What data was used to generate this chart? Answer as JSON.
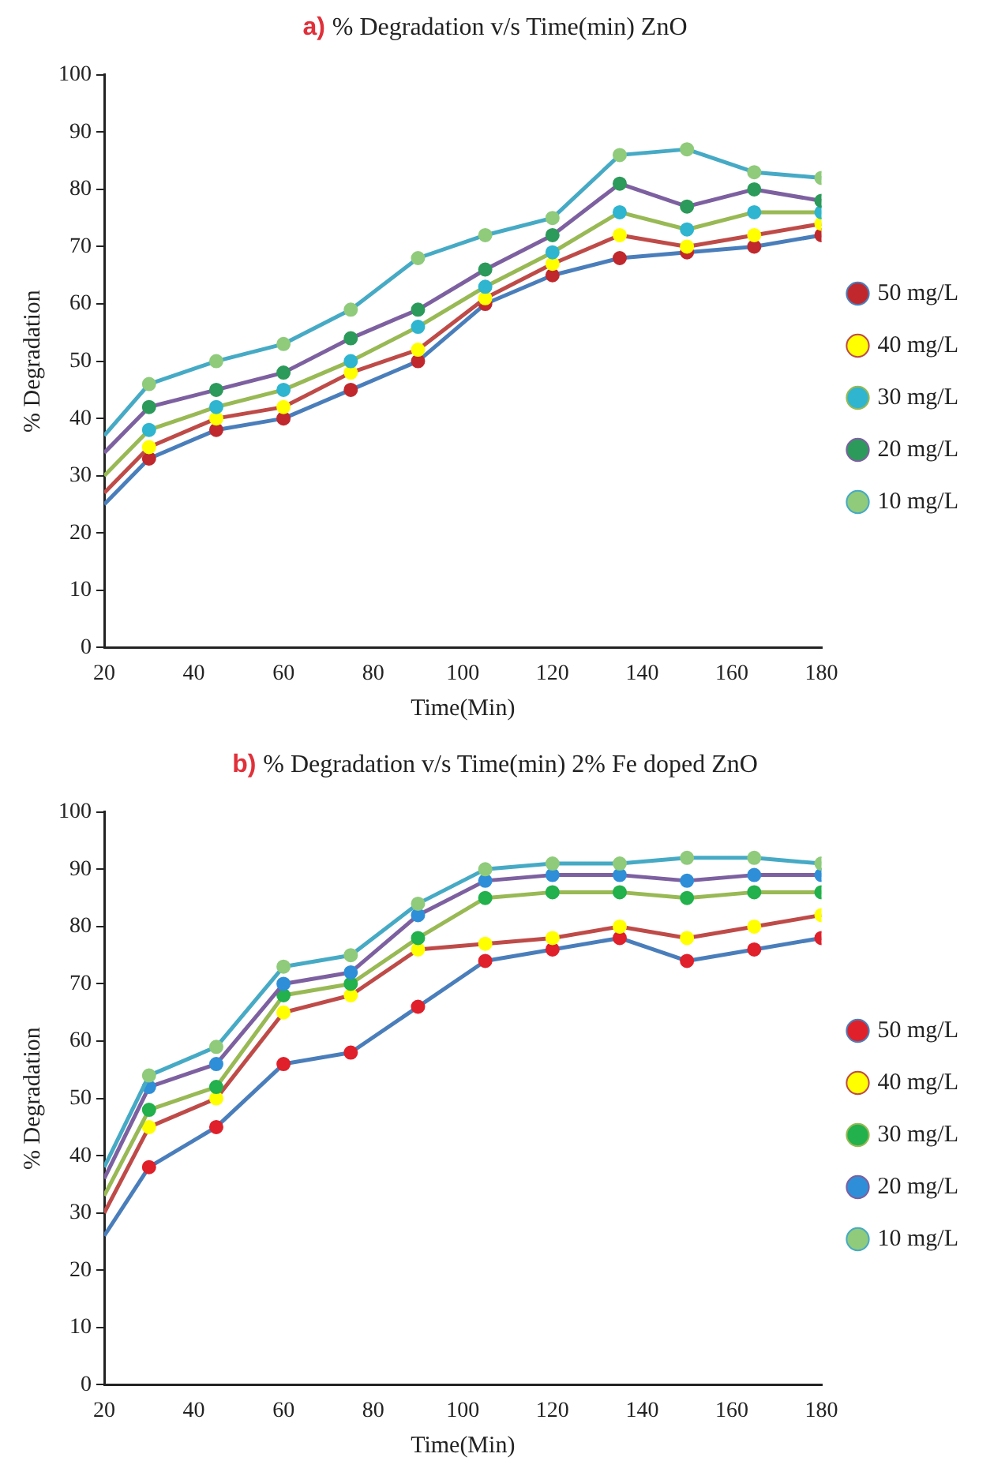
{
  "chart_data": [
    {
      "type": "line",
      "title": "a) % Degradation v/s Time(min) ZnO",
      "xlabel": "Time(Min)",
      "ylabel": "% Degradation",
      "x": [
        20,
        30,
        45,
        60,
        75,
        90,
        105,
        120,
        135,
        150,
        165,
        180
      ],
      "xlim": [
        20,
        180
      ],
      "xticks": [
        20,
        40,
        60,
        80,
        100,
        120,
        140,
        160,
        180
      ],
      "ylim": [
        0,
        100
      ],
      "yticks": [
        0,
        10,
        20,
        30,
        40,
        50,
        60,
        70,
        80,
        90,
        100
      ],
      "grid": false,
      "legend": "right",
      "marker": "circle",
      "line_style": "solid",
      "series": [
        {
          "name": "50 mg/L",
          "color": "#4a7ebb",
          "colors": [
            null,
            "#c0282d",
            "#c0282d",
            "#c0282d",
            "#c0282d",
            "#c0282d",
            "#c0282d",
            "#c0282d",
            "#c0282d",
            "#c0282d",
            "#c0282d",
            "#c0282d"
          ],
          "values": [
            25,
            33,
            38,
            40,
            45,
            50,
            60,
            65,
            68,
            69,
            70,
            72
          ]
        },
        {
          "name": "40 mg/L",
          "color": "#be4b48",
          "colors": [
            null,
            "#ffff00",
            "#ffff00",
            "#ffff00",
            "#ffff00",
            "#ffff00",
            "#ffff00",
            "#ffff00",
            "#ffff00",
            "#ffff00",
            "#ffff00",
            "#ffff00"
          ],
          "values": [
            27,
            35,
            40,
            42,
            48,
            52,
            61,
            67,
            72,
            70,
            72,
            74
          ]
        },
        {
          "name": "30 mg/L",
          "color": "#98b954",
          "colors": [
            null,
            "#2fb5cf",
            "#2fb5cf",
            "#2fb5cf",
            "#2fb5cf",
            "#2fb5cf",
            "#2fb5cf",
            "#2fb5cf",
            "#2fb5cf",
            "#2fb5cf",
            "#2fb5cf",
            "#2fb5cf"
          ],
          "values": [
            30,
            38,
            42,
            45,
            50,
            56,
            63,
            69,
            76,
            73,
            76,
            76
          ]
        },
        {
          "name": "20 mg/L",
          "color": "#7d60a0",
          "colors": [
            null,
            "#2c9a5a",
            "#2c9a5a",
            "#2c9a5a",
            "#2c9a5a",
            "#2c9a5a",
            "#2c9a5a",
            "#2c9a5a",
            "#2c9a5a",
            "#2c9a5a",
            "#2c9a5a",
            "#2c9a5a"
          ],
          "values": [
            34,
            42,
            45,
            48,
            54,
            59,
            66,
            72,
            81,
            77,
            80,
            78
          ]
        },
        {
          "name": "10 mg/L",
          "color": "#46aac5",
          "colors": [
            null,
            "#8fcb7a",
            "#8fcb7a",
            "#8fcb7a",
            "#8fcb7a",
            "#8fcb7a",
            "#8fcb7a",
            "#8fcb7a",
            "#8fcb7a",
            "#8fcb7a",
            "#8fcb7a",
            "#8fcb7a"
          ],
          "values": [
            37,
            46,
            50,
            53,
            59,
            68,
            72,
            75,
            86,
            87,
            83,
            82
          ]
        }
      ]
    },
    {
      "type": "line",
      "title": "b) % Degradation v/s Time(min) 2% Fe doped ZnO",
      "xlabel": "Time(Min)",
      "ylabel": "% Degradation",
      "x": [
        20,
        30,
        45,
        60,
        75,
        90,
        105,
        120,
        135,
        150,
        165,
        180
      ],
      "xlim": [
        20,
        180
      ],
      "xticks": [
        20,
        40,
        60,
        80,
        100,
        120,
        140,
        160,
        180
      ],
      "ylim": [
        0,
        100
      ],
      "yticks": [
        0,
        10,
        20,
        30,
        40,
        50,
        60,
        70,
        80,
        90,
        100
      ],
      "grid": false,
      "legend": "right",
      "marker": "circle",
      "line_style": "solid",
      "series": [
        {
          "name": "50 mg/L",
          "color": "#4a7ebb",
          "colors": [
            null,
            "#e0202a",
            "#e0202a",
            "#e0202a",
            "#e0202a",
            "#e0202a",
            "#e0202a",
            "#e0202a",
            "#e0202a",
            "#e0202a",
            "#e0202a",
            "#e0202a"
          ],
          "values": [
            26,
            38,
            45,
            56,
            58,
            66,
            74,
            76,
            78,
            74,
            76,
            78
          ]
        },
        {
          "name": "40 mg/L",
          "color": "#be4b48",
          "colors": [
            null,
            "#ffff00",
            "#ffff00",
            "#ffff00",
            "#ffff00",
            "#ffff00",
            "#ffff00",
            "#ffff00",
            "#ffff00",
            "#ffff00",
            "#ffff00",
            "#ffff00"
          ],
          "values": [
            30,
            45,
            50,
            65,
            68,
            76,
            77,
            78,
            80,
            78,
            80,
            82
          ]
        },
        {
          "name": "30 mg/L",
          "color": "#98b954",
          "colors": [
            null,
            "#22b14c",
            "#22b14c",
            "#22b14c",
            "#22b14c",
            "#22b14c",
            "#22b14c",
            "#22b14c",
            "#22b14c",
            "#22b14c",
            "#22b14c",
            "#22b14c"
          ],
          "values": [
            33,
            48,
            52,
            68,
            70,
            78,
            85,
            86,
            86,
            85,
            86,
            86
          ]
        },
        {
          "name": "20 mg/L",
          "color": "#7d60a0",
          "colors": [
            null,
            "#2e8fd8",
            "#2e8fd8",
            "#2e8fd8",
            "#2e8fd8",
            "#2e8fd8",
            "#2e8fd8",
            "#2e8fd8",
            "#2e8fd8",
            "#2e8fd8",
            "#2e8fd8",
            "#2e8fd8"
          ],
          "values": [
            36,
            52,
            56,
            70,
            72,
            82,
            88,
            89,
            89,
            88,
            89,
            89
          ]
        },
        {
          "name": "10 mg/L",
          "color": "#46aac5",
          "colors": [
            null,
            "#8fcb7a",
            "#8fcb7a",
            "#8fcb7a",
            "#8fcb7a",
            "#8fcb7a",
            "#8fcb7a",
            "#8fcb7a",
            "#8fcb7a",
            "#8fcb7a",
            "#8fcb7a",
            "#8fcb7a"
          ],
          "values": [
            38,
            54,
            59,
            73,
            75,
            84,
            90,
            91,
            91,
            92,
            92,
            91
          ]
        }
      ]
    }
  ]
}
